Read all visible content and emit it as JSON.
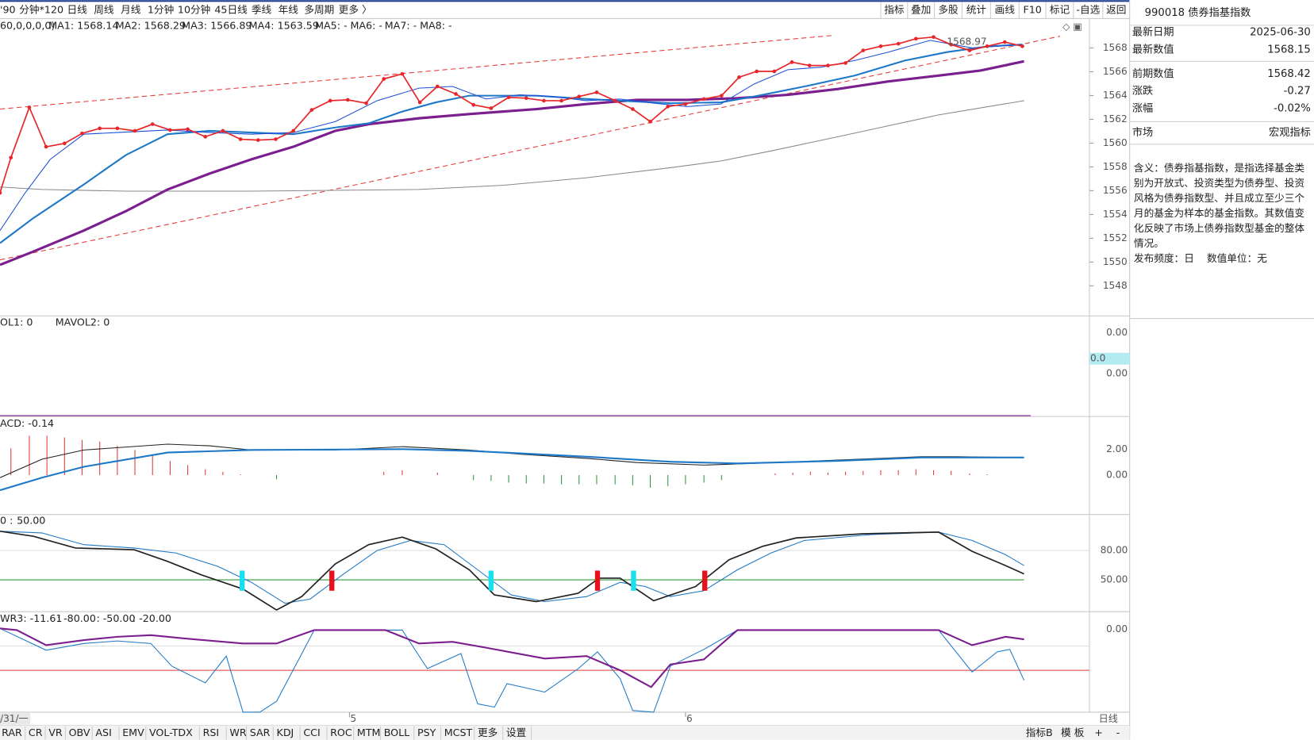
{
  "toolbar": {
    "left": [
      "'90",
      "分钟*120",
      "日线",
      "周线",
      "月线",
      "1分钟",
      "10分钟",
      "45日线",
      "季线",
      "年线",
      "多周期",
      "更多 〉"
    ],
    "right": [
      "指标",
      "叠加",
      "多股",
      "统计",
      "画线",
      "F10",
      "标记",
      "-自选",
      "返回"
    ]
  },
  "ma_legend": [
    "60,0,0,0,0)",
    "MA1: 1568.14",
    "MA2: 1568.29",
    "MA3: 1566.89",
    "MA4: 1563.59",
    "MA5: -",
    "MA6: -",
    "MA7: -",
    "MA8: -"
  ],
  "price_axis": [
    "1568",
    "1566",
    "1564",
    "1562",
    "1560",
    "1558",
    "1556",
    "1554",
    "1552",
    "1550",
    "1548"
  ],
  "peak_label": "1568.97",
  "vol_panel": {
    "legend": [
      "OL1: 0",
      "MAVOL2: 0"
    ],
    "ticks": [
      "0.00",
      "0.00"
    ],
    "marker": "0.0"
  },
  "macd_panel": {
    "legend": "ACD: -0.14",
    "ticks": [
      "2.00",
      "0.00"
    ]
  },
  "kdj_panel": {
    "legend": [
      "0 :",
      "50.00"
    ],
    "ticks": [
      "80.00",
      "50.00"
    ]
  },
  "wr_panel": {
    "legend": [
      "WR3: -11.61",
      ": -80.00",
      ": -50.00",
      ": -20.00"
    ],
    "ticks": [
      "0.00"
    ]
  },
  "date_axis": [
    "/31/一",
    "5",
    "6",
    "日线"
  ],
  "bottom_tabs": [
    "RAR",
    "CR",
    "VR",
    "OBV",
    "ASI",
    "EMV",
    "VOL-TDX",
    "RSI",
    "WR",
    "SAR",
    "KDJ",
    "CCI",
    "ROC",
    "MTM",
    "BOLL",
    "PSY",
    "MCST",
    "更多",
    "设置"
  ],
  "bottom_right": [
    "指标B",
    "模 板",
    "+",
    "-"
  ],
  "info": {
    "title": "990018 债券指基指数",
    "rows": [
      [
        "最新日期",
        "2025-06-30"
      ],
      [
        "最新数值",
        "1568.15"
      ],
      [
        "前期数值",
        "1568.42"
      ],
      [
        "涨跌",
        "-0.27"
      ],
      [
        "涨幅",
        "-0.02%"
      ],
      [
        "市场",
        "宏观指标"
      ]
    ],
    "description": [
      "含义：债券指基指数，是指选择基金类",
      "别为开放式、投资类型为债券型、投资",
      "风格为债券指数型、并且成立至少三个",
      "月的基金为样本的基金指数。其数值变",
      "化反映了市场上债券指数型基金的整体",
      "情况。"
    ],
    "footer": "发布频度：日    数值单位：无"
  }
}
